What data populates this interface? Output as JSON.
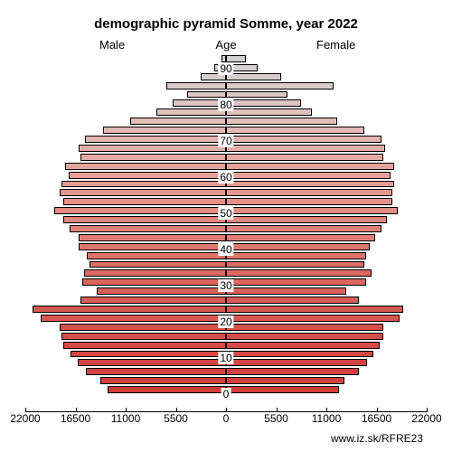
{
  "title": "demographic pyramid Somme, year 2022",
  "labels": {
    "male": "Male",
    "age": "Age",
    "female": "Female"
  },
  "footer": "www.iz.sk/RFRE23",
  "chart": {
    "type": "population-pyramid",
    "background_color": "#ffffff",
    "border_color": "#000000",
    "title_fontsize": 15,
    "label_fontsize": 13,
    "tick_fontsize": 12,
    "x_max": 22000,
    "x_ticks": [
      22000,
      16500,
      11000,
      5500,
      0,
      5500,
      11000,
      16500,
      22000
    ],
    "age_ticks": [
      0,
      10,
      20,
      30,
      40,
      50,
      60,
      70,
      80,
      90
    ],
    "bars": [
      {
        "age": 92,
        "male": 500,
        "female": 2200,
        "color": "#d0d0d0"
      },
      {
        "age": 90,
        "male": 1300,
        "female": 3500,
        "color": "#d2d0d0"
      },
      {
        "age": 87,
        "male": 2800,
        "female": 6000,
        "color": "#d5cecd"
      },
      {
        "age": 85,
        "male": 6500,
        "female": 11800,
        "color": "#d8cbc9"
      },
      {
        "age": 82,
        "male": 4300,
        "female": 6700,
        "color": "#dbc8c6"
      },
      {
        "age": 80,
        "male": 5800,
        "female": 8200,
        "color": "#ddc5c2"
      },
      {
        "age": 77,
        "male": 7600,
        "female": 9400,
        "color": "#dfc1be"
      },
      {
        "age": 75,
        "male": 10500,
        "female": 12200,
        "color": "#e1bdb9"
      },
      {
        "age": 72,
        "male": 13500,
        "female": 15200,
        "color": "#e2b8b4"
      },
      {
        "age": 70,
        "male": 15500,
        "female": 17000,
        "color": "#e3b3af"
      },
      {
        "age": 67,
        "male": 16200,
        "female": 17400,
        "color": "#e3aea9"
      },
      {
        "age": 65,
        "male": 16000,
        "female": 17200,
        "color": "#e3a9a3"
      },
      {
        "age": 62,
        "male": 17600,
        "female": 18400,
        "color": "#e3a49e"
      },
      {
        "age": 60,
        "male": 17200,
        "female": 18000,
        "color": "#e39f98"
      },
      {
        "age": 57,
        "male": 18000,
        "female": 18400,
        "color": "#e39a93"
      },
      {
        "age": 55,
        "male": 18200,
        "female": 18200,
        "color": "#e3958e"
      },
      {
        "age": 52,
        "male": 17800,
        "female": 18200,
        "color": "#e39089"
      },
      {
        "age": 50,
        "male": 18800,
        "female": 18800,
        "color": "#e38b84"
      },
      {
        "age": 47,
        "male": 17800,
        "female": 17600,
        "color": "#e2867f"
      },
      {
        "age": 45,
        "male": 17100,
        "female": 17000,
        "color": "#e1817a"
      },
      {
        "age": 42,
        "male": 16200,
        "female": 16400,
        "color": "#e07c76"
      },
      {
        "age": 40,
        "male": 16200,
        "female": 15800,
        "color": "#df7771"
      },
      {
        "age": 37,
        "male": 15300,
        "female": 15400,
        "color": "#de726d"
      },
      {
        "age": 35,
        "male": 15000,
        "female": 15200,
        "color": "#dd6d68"
      },
      {
        "age": 32,
        "male": 15600,
        "female": 16000,
        "color": "#dc6864"
      },
      {
        "age": 30,
        "male": 15800,
        "female": 15400,
        "color": "#db6460"
      },
      {
        "age": 27,
        "male": 14200,
        "female": 13200,
        "color": "#da605c"
      },
      {
        "age": 25,
        "male": 16000,
        "female": 14600,
        "color": "#d95c58"
      },
      {
        "age": 22,
        "male": 21200,
        "female": 19400,
        "color": "#d85854"
      },
      {
        "age": 20,
        "male": 20300,
        "female": 19000,
        "color": "#d75450"
      },
      {
        "age": 17,
        "male": 18200,
        "female": 17200,
        "color": "#d6504d"
      },
      {
        "age": 15,
        "male": 18000,
        "female": 17200,
        "color": "#d54d4a"
      },
      {
        "age": 12,
        "male": 17800,
        "female": 16800,
        "color": "#d44a47"
      },
      {
        "age": 10,
        "male": 17000,
        "female": 16200,
        "color": "#d34744"
      },
      {
        "age": 7,
        "male": 16300,
        "female": 15500,
        "color": "#d24441"
      },
      {
        "age": 5,
        "male": 15400,
        "female": 14600,
        "color": "#d1413f"
      },
      {
        "age": 2,
        "male": 13800,
        "female": 13000,
        "color": "#d03f3d"
      },
      {
        "age": 0,
        "male": 13000,
        "female": 12400,
        "color": "#cf3d3b"
      }
    ]
  }
}
